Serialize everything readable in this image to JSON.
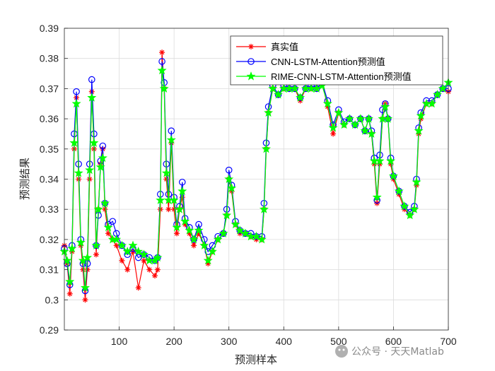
{
  "chart_data": {
    "type": "line",
    "xlabel": "预测样本",
    "ylabel": "预测结果",
    "xlim": [
      0,
      700
    ],
    "ylim": [
      0.29,
      0.39
    ],
    "x_ticks": [
      "100",
      "200",
      "300",
      "400",
      "500",
      "600",
      "700"
    ],
    "y_ticks": [
      "0.29",
      "0.3",
      "0.31",
      "0.32",
      "0.33",
      "0.34",
      "0.35",
      "0.36",
      "0.37",
      "0.38",
      "0.39"
    ],
    "grid": true,
    "legend_position": "top-right",
    "series": [
      {
        "name": "真实值",
        "color": "#ff0000",
        "marker": "asterisk",
        "points": [
          [
            0,
            0.318
          ],
          [
            5,
            0.312
          ],
          [
            10,
            0.302
          ],
          [
            14,
            0.316
          ],
          [
            18,
            0.35
          ],
          [
            22,
            0.367
          ],
          [
            26,
            0.34
          ],
          [
            30,
            0.318
          ],
          [
            34,
            0.31
          ],
          [
            38,
            0.3
          ],
          [
            42,
            0.31
          ],
          [
            46,
            0.34
          ],
          [
            50,
            0.369
          ],
          [
            54,
            0.35
          ],
          [
            58,
            0.315
          ],
          [
            62,
            0.33
          ],
          [
            66,
            0.345
          ],
          [
            70,
            0.35
          ],
          [
            74,
            0.33
          ],
          [
            80,
            0.322
          ],
          [
            88,
            0.32
          ],
          [
            95,
            0.318
          ],
          [
            105,
            0.313
          ],
          [
            115,
            0.31
          ],
          [
            125,
            0.316
          ],
          [
            135,
            0.304
          ],
          [
            145,
            0.313
          ],
          [
            155,
            0.31
          ],
          [
            165,
            0.308
          ],
          [
            170,
            0.31
          ],
          [
            175,
            0.33
          ],
          [
            178,
            0.382
          ],
          [
            182,
            0.37
          ],
          [
            186,
            0.34
          ],
          [
            190,
            0.33
          ],
          [
            195,
            0.352
          ],
          [
            200,
            0.33
          ],
          [
            205,
            0.322
          ],
          [
            210,
            0.33
          ],
          [
            215,
            0.334
          ],
          [
            220,
            0.325
          ],
          [
            228,
            0.322
          ],
          [
            236,
            0.318
          ],
          [
            245,
            0.322
          ],
          [
            255,
            0.318
          ],
          [
            262,
            0.312
          ],
          [
            270,
            0.316
          ],
          [
            280,
            0.32
          ],
          [
            290,
            0.322
          ],
          [
            296,
            0.328
          ],
          [
            300,
            0.34
          ],
          [
            305,
            0.336
          ],
          [
            312,
            0.325
          ],
          [
            320,
            0.322
          ],
          [
            330,
            0.322
          ],
          [
            340,
            0.321
          ],
          [
            350,
            0.32
          ],
          [
            360,
            0.32
          ],
          [
            364,
            0.33
          ],
          [
            368,
            0.35
          ],
          [
            372,
            0.362
          ],
          [
            380,
            0.37
          ],
          [
            390,
            0.368
          ],
          [
            400,
            0.37
          ],
          [
            410,
            0.37
          ],
          [
            420,
            0.37
          ],
          [
            430,
            0.366
          ],
          [
            440,
            0.37
          ],
          [
            450,
            0.37
          ],
          [
            460,
            0.37
          ],
          [
            470,
            0.372
          ],
          [
            480,
            0.364
          ],
          [
            490,
            0.355
          ],
          [
            500,
            0.362
          ],
          [
            510,
            0.358
          ],
          [
            520,
            0.36
          ],
          [
            530,
            0.358
          ],
          [
            540,
            0.36
          ],
          [
            548,
            0.356
          ],
          [
            555,
            0.36
          ],
          [
            560,
            0.355
          ],
          [
            565,
            0.345
          ],
          [
            570,
            0.332
          ],
          [
            575,
            0.345
          ],
          [
            580,
            0.36
          ],
          [
            585,
            0.365
          ],
          [
            590,
            0.36
          ],
          [
            595,
            0.345
          ],
          [
            600,
            0.34
          ],
          [
            610,
            0.335
          ],
          [
            620,
            0.33
          ],
          [
            630,
            0.328
          ],
          [
            638,
            0.33
          ],
          [
            642,
            0.338
          ],
          [
            646,
            0.355
          ],
          [
            650,
            0.36
          ],
          [
            660,
            0.365
          ],
          [
            670,
            0.365
          ],
          [
            680,
            0.368
          ],
          [
            690,
            0.37
          ],
          [
            700,
            0.369
          ]
        ]
      },
      {
        "name": "CNN-LSTM-Attention预测值",
        "color": "#0000ff",
        "marker": "circle",
        "points": [
          [
            0,
            0.317
          ],
          [
            5,
            0.312
          ],
          [
            10,
            0.305
          ],
          [
            14,
            0.318
          ],
          [
            18,
            0.355
          ],
          [
            22,
            0.369
          ],
          [
            26,
            0.345
          ],
          [
            30,
            0.32
          ],
          [
            34,
            0.312
          ],
          [
            38,
            0.303
          ],
          [
            42,
            0.312
          ],
          [
            46,
            0.345
          ],
          [
            50,
            0.373
          ],
          [
            54,
            0.355
          ],
          [
            58,
            0.318
          ],
          [
            62,
            0.328
          ],
          [
            66,
            0.346
          ],
          [
            70,
            0.351
          ],
          [
            74,
            0.332
          ],
          [
            80,
            0.325
          ],
          [
            88,
            0.326
          ],
          [
            95,
            0.322
          ],
          [
            105,
            0.318
          ],
          [
            115,
            0.315
          ],
          [
            125,
            0.317
          ],
          [
            135,
            0.314
          ],
          [
            145,
            0.315
          ],
          [
            155,
            0.314
          ],
          [
            165,
            0.313
          ],
          [
            170,
            0.314
          ],
          [
            175,
            0.335
          ],
          [
            178,
            0.379
          ],
          [
            182,
            0.372
          ],
          [
            186,
            0.345
          ],
          [
            190,
            0.335
          ],
          [
            195,
            0.356
          ],
          [
            200,
            0.334
          ],
          [
            205,
            0.325
          ],
          [
            210,
            0.331
          ],
          [
            215,
            0.339
          ],
          [
            220,
            0.327
          ],
          [
            228,
            0.324
          ],
          [
            236,
            0.32
          ],
          [
            245,
            0.325
          ],
          [
            255,
            0.32
          ],
          [
            262,
            0.316
          ],
          [
            270,
            0.318
          ],
          [
            280,
            0.321
          ],
          [
            290,
            0.322
          ],
          [
            296,
            0.33
          ],
          [
            300,
            0.343
          ],
          [
            305,
            0.338
          ],
          [
            312,
            0.326
          ],
          [
            320,
            0.323
          ],
          [
            330,
            0.322
          ],
          [
            340,
            0.322
          ],
          [
            350,
            0.321
          ],
          [
            360,
            0.321
          ],
          [
            364,
            0.332
          ],
          [
            368,
            0.352
          ],
          [
            372,
            0.364
          ],
          [
            380,
            0.371
          ],
          [
            390,
            0.368
          ],
          [
            400,
            0.371
          ],
          [
            410,
            0.37
          ],
          [
            420,
            0.37
          ],
          [
            430,
            0.367
          ],
          [
            440,
            0.37
          ],
          [
            450,
            0.371
          ],
          [
            460,
            0.37
          ],
          [
            470,
            0.372
          ],
          [
            480,
            0.366
          ],
          [
            490,
            0.358
          ],
          [
            500,
            0.363
          ],
          [
            510,
            0.359
          ],
          [
            520,
            0.36
          ],
          [
            530,
            0.358
          ],
          [
            540,
            0.36
          ],
          [
            548,
            0.356
          ],
          [
            555,
            0.36
          ],
          [
            560,
            0.356
          ],
          [
            565,
            0.347
          ],
          [
            570,
            0.333
          ],
          [
            575,
            0.348
          ],
          [
            580,
            0.363
          ],
          [
            585,
            0.365
          ],
          [
            590,
            0.36
          ],
          [
            595,
            0.347
          ],
          [
            600,
            0.341
          ],
          [
            610,
            0.336
          ],
          [
            620,
            0.331
          ],
          [
            630,
            0.329
          ],
          [
            638,
            0.331
          ],
          [
            642,
            0.34
          ],
          [
            646,
            0.357
          ],
          [
            650,
            0.362
          ],
          [
            660,
            0.366
          ],
          [
            670,
            0.366
          ],
          [
            680,
            0.368
          ],
          [
            690,
            0.37
          ],
          [
            700,
            0.37
          ]
        ]
      },
      {
        "name": "RIME-CNN-LSTM-Attention预测值",
        "color": "#00ff00",
        "marker": "pentagram",
        "points": [
          [
            0,
            0.316
          ],
          [
            5,
            0.313
          ],
          [
            10,
            0.306
          ],
          [
            14,
            0.317
          ],
          [
            18,
            0.352
          ],
          [
            22,
            0.365
          ],
          [
            26,
            0.342
          ],
          [
            30,
            0.319
          ],
          [
            34,
            0.313
          ],
          [
            38,
            0.304
          ],
          [
            42,
            0.314
          ],
          [
            46,
            0.343
          ],
          [
            50,
            0.367
          ],
          [
            54,
            0.352
          ],
          [
            58,
            0.318
          ],
          [
            62,
            0.33
          ],
          [
            66,
            0.344
          ],
          [
            70,
            0.347
          ],
          [
            74,
            0.332
          ],
          [
            80,
            0.324
          ],
          [
            88,
            0.32
          ],
          [
            95,
            0.32
          ],
          [
            105,
            0.318
          ],
          [
            115,
            0.316
          ],
          [
            125,
            0.318
          ],
          [
            135,
            0.316
          ],
          [
            145,
            0.315
          ],
          [
            155,
            0.313
          ],
          [
            165,
            0.313
          ],
          [
            170,
            0.314
          ],
          [
            175,
            0.333
          ],
          [
            178,
            0.376
          ],
          [
            182,
            0.37
          ],
          [
            186,
            0.342
          ],
          [
            190,
            0.333
          ],
          [
            195,
            0.353
          ],
          [
            200,
            0.333
          ],
          [
            205,
            0.324
          ],
          [
            210,
            0.33
          ],
          [
            215,
            0.336
          ],
          [
            220,
            0.326
          ],
          [
            228,
            0.323
          ],
          [
            236,
            0.32
          ],
          [
            245,
            0.323
          ],
          [
            255,
            0.318
          ],
          [
            262,
            0.313
          ],
          [
            270,
            0.316
          ],
          [
            280,
            0.32
          ],
          [
            290,
            0.322
          ],
          [
            296,
            0.328
          ],
          [
            300,
            0.34
          ],
          [
            305,
            0.337
          ],
          [
            312,
            0.325
          ],
          [
            320,
            0.323
          ],
          [
            330,
            0.322
          ],
          [
            340,
            0.321
          ],
          [
            350,
            0.321
          ],
          [
            360,
            0.32
          ],
          [
            364,
            0.33
          ],
          [
            368,
            0.35
          ],
          [
            372,
            0.362
          ],
          [
            380,
            0.37
          ],
          [
            390,
            0.368
          ],
          [
            400,
            0.37
          ],
          [
            410,
            0.37
          ],
          [
            420,
            0.37
          ],
          [
            430,
            0.367
          ],
          [
            440,
            0.37
          ],
          [
            450,
            0.37
          ],
          [
            460,
            0.37
          ],
          [
            470,
            0.371
          ],
          [
            480,
            0.365
          ],
          [
            490,
            0.357
          ],
          [
            500,
            0.362
          ],
          [
            510,
            0.358
          ],
          [
            520,
            0.36
          ],
          [
            530,
            0.358
          ],
          [
            540,
            0.36
          ],
          [
            548,
            0.356
          ],
          [
            555,
            0.36
          ],
          [
            560,
            0.355
          ],
          [
            565,
            0.346
          ],
          [
            570,
            0.334
          ],
          [
            575,
            0.346
          ],
          [
            580,
            0.36
          ],
          [
            585,
            0.364
          ],
          [
            590,
            0.36
          ],
          [
            595,
            0.346
          ],
          [
            600,
            0.341
          ],
          [
            610,
            0.336
          ],
          [
            620,
            0.331
          ],
          [
            630,
            0.328
          ],
          [
            638,
            0.33
          ],
          [
            642,
            0.339
          ],
          [
            646,
            0.356
          ],
          [
            650,
            0.361
          ],
          [
            660,
            0.365
          ],
          [
            670,
            0.365
          ],
          [
            680,
            0.368
          ],
          [
            690,
            0.37
          ],
          [
            700,
            0.372
          ]
        ]
      }
    ]
  },
  "watermark": {
    "text": "公众号 · 天天Matlab"
  }
}
